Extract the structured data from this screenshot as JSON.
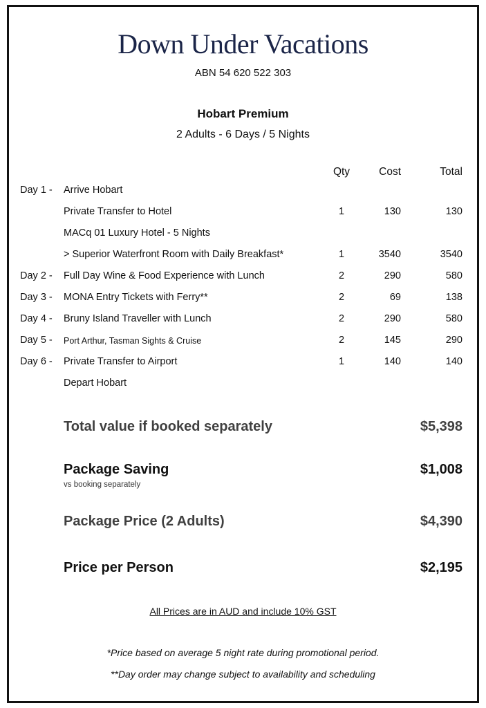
{
  "company": {
    "name": "Down Under Vacations",
    "abn": "ABN 54 620 522 303"
  },
  "package": {
    "title": "Hobart Premium",
    "subtitle": "2 Adults - 6 Days / 5 Nights"
  },
  "table": {
    "headers": {
      "qty": "Qty",
      "cost": "Cost",
      "total": "Total"
    },
    "rows": [
      {
        "day": "Day 1  -",
        "item": "Arrive Hobart",
        "qty": "",
        "cost": "",
        "total": ""
      },
      {
        "day": "",
        "item": "Private Transfer to Hotel",
        "qty": "1",
        "cost": "130",
        "total": "130"
      },
      {
        "day": "",
        "item": "MACq 01 Luxury Hotel - 5 Nights",
        "qty": "",
        "cost": "",
        "total": ""
      },
      {
        "day": "",
        "item": "> Superior Waterfront Room with Daily Breakfast*",
        "qty": "1",
        "cost": "3540",
        "total": "3540"
      },
      {
        "day": "Day 2  -",
        "item": "Full Day Wine & Food Experience with Lunch",
        "qty": "2",
        "cost": "290",
        "total": "580"
      },
      {
        "day": "Day 3  -",
        "item": "MONA Entry Tickets with Ferry**",
        "qty": "2",
        "cost": "69",
        "total": "138"
      },
      {
        "day": "Day 4  -",
        "item": "Bruny Island Traveller with Lunch",
        "qty": "2",
        "cost": "290",
        "total": "580"
      },
      {
        "day": "Day 5  -",
        "item": "Port Arthur, Tasman Sights & Cruise",
        "qty": "2",
        "cost": "145",
        "total": "290"
      },
      {
        "day": "Day 6  -",
        "item": "Private Transfer to Airport",
        "qty": "1",
        "cost": "140",
        "total": "140"
      },
      {
        "day": "",
        "item": "Depart Hobart",
        "qty": "",
        "cost": "",
        "total": ""
      }
    ]
  },
  "summary": {
    "total_value": {
      "label": "Total value if booked separately",
      "value": "$5,398"
    },
    "saving": {
      "label": "Package Saving",
      "note": "vs booking separately",
      "value": "$1,008"
    },
    "package_price": {
      "label": "Package Price (2 Adults)",
      "value": "$4,390"
    },
    "per_person": {
      "label": "Price per Person",
      "value": "$2,195"
    }
  },
  "notes": {
    "gst": "All Prices are in AUD and include 10% GST",
    "footnote1": "*Price based on average 5 night rate during promotional period.",
    "footnote2": "**Day order may change subject to availability and scheduling"
  }
}
